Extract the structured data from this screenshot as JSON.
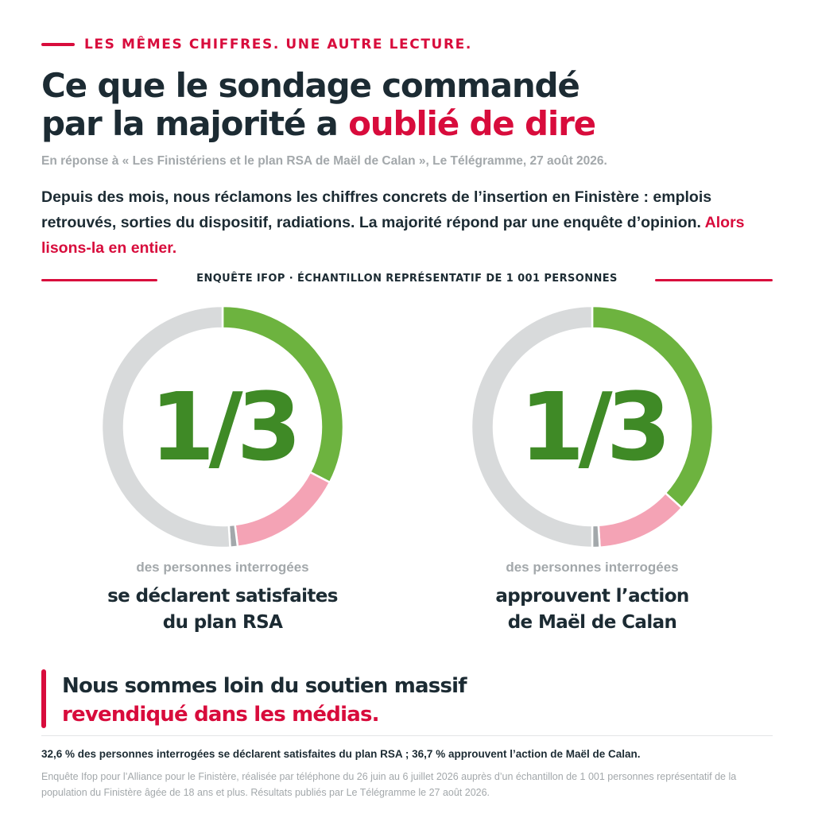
{
  "kicker": "LES MÊMES CHIFFRES. UNE AUTRE LECTURE.",
  "headline": {
    "line1": "Ce que le sondage commandé",
    "line2_start": "par la majorité a ",
    "line2_accent": "oublié de dire"
  },
  "reference": "En réponse à « Les Finistériens et le plan RSA de Maël de Calan », Le Télégramme, 27 août 2026.",
  "intro": {
    "text": "Depuis des mois, nous réclamons les chiffres concrets de l’insertion en Finistère : emplois retrouvés, sorties du dispositif, radiations. La majorité répond par une enquête d’opinion. ",
    "accent": "Alors lisons-la en entier."
  },
  "divider_label": "ENQUÊTE IFOP · ÉCHANTILLON REPRÉSENTATIF DE 1 001 PERSONNES",
  "colors": {
    "accent": "#d80c3c",
    "green": "#6db33f",
    "green_dark": "#3f8a26",
    "pink": "#f4a3b5",
    "gray": "#d8dadb",
    "gray_dark": "#a3a8ab",
    "text": "#1c2b33"
  },
  "chart_data": [
    {
      "type": "pie",
      "big_label": "1/3",
      "caption_sub": "des personnes interrogées",
      "caption_line1": "se déclarent satisfaites",
      "caption_line2": "du plan RSA",
      "values": [
        32.6,
        15.4,
        1.0,
        51.0
      ]
    },
    {
      "type": "pie",
      "big_label": "1/3",
      "caption_sub": "des personnes interrogées",
      "caption_line1": "approuvent l’action",
      "caption_line2": "de Maël de Calan",
      "values": [
        36.7,
        12.3,
        1.0,
        50.0
      ]
    }
  ],
  "conclusion": {
    "line1": "Nous sommes loin du soutien massif",
    "line2": "revendiqué dans les médias."
  },
  "footer": {
    "main": "32,6 % des personnes interrogées se déclarent satisfaites du plan RSA ; 36,7 % approuvent l’action de Maël de Calan.",
    "note": "Enquête Ifop pour l’Alliance pour le Finistère, réalisée par téléphone du 26 juin au 6 juillet 2026 auprès d’un échantillon de 1 001 personnes représentatif de la population du Finistère âgée de 18 ans et plus. Résultats publiés par Le Télégramme le 27 août 2026."
  }
}
